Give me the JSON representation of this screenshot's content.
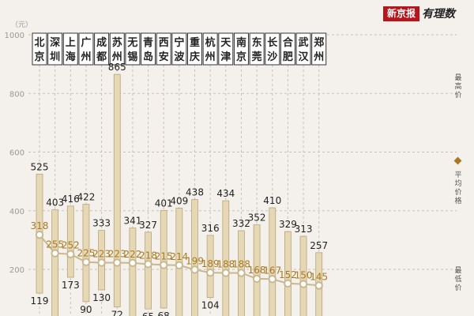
{
  "brand": {
    "name": "新京报",
    "tag": "有理数"
  },
  "chart_data": {
    "type": "range-bar",
    "y_unit": "（元）",
    "yticks": [
      200,
      400,
      600,
      800,
      1000
    ],
    "ylim": [
      40,
      1000
    ],
    "grid": true,
    "categories": [
      "北京",
      "深圳",
      "上海",
      "广州",
      "成都",
      "苏州",
      "无锡",
      "青岛",
      "西安",
      "宁波",
      "重庆",
      "杭州",
      "天津",
      "南京",
      "东莞",
      "长沙",
      "合肥",
      "武汉",
      "郑州"
    ],
    "series": [
      {
        "name": "最高价",
        "values": [
          525,
          403,
          416,
          422,
          333,
          865,
          341,
          327,
          401,
          409,
          438,
          316,
          434,
          332,
          352,
          410,
          329,
          313,
          257
        ]
      },
      {
        "name": "平均价格",
        "values": [
          318,
          255,
          252,
          225,
          223,
          223,
          222,
          218,
          215,
          214,
          199,
          189,
          188,
          188,
          168,
          167,
          152,
          150,
          145
        ]
      },
      {
        "name": "最低价",
        "values": [
          119,
          null,
          173,
          90,
          130,
          72,
          null,
          65,
          68,
          null,
          null,
          104,
          null,
          null,
          null,
          null,
          null,
          null,
          null
        ]
      }
    ],
    "legend": {
      "max": "最高价",
      "avg": "平均价格",
      "min": "最低价"
    },
    "legend_position": "right"
  },
  "colors": {
    "bar_fill": "#e6d8b4",
    "bar_stroke": "#b5a57c",
    "avg_line": "#c9b88f",
    "avg_text": "#a9791f",
    "grid": "#c8c1b5",
    "text": "#222222",
    "axis_text": "#999999"
  }
}
